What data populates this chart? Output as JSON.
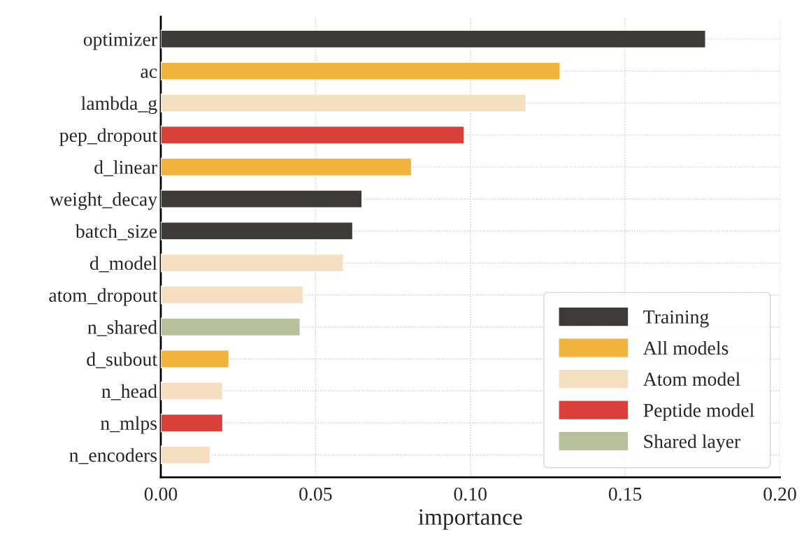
{
  "chart_data": {
    "type": "bar",
    "orientation": "horizontal",
    "stacked": true,
    "categories": [
      "optimizer",
      "ac",
      "lambda_g",
      "pep_dropout",
      "d_linear",
      "weight_decay",
      "batch_size",
      "d_model",
      "atom_dropout",
      "n_shared",
      "d_subout",
      "n_head",
      "n_mlps",
      "n_encoders"
    ],
    "series": [
      {
        "name": "Training",
        "color": "#3d3b38",
        "values": [
          0.176,
          null,
          null,
          null,
          null,
          0.065,
          0.062,
          null,
          null,
          null,
          null,
          null,
          null,
          null
        ]
      },
      {
        "name": "All models",
        "color": "#f0b43c",
        "values": [
          null,
          0.129,
          null,
          null,
          0.081,
          null,
          null,
          null,
          null,
          null,
          0.022,
          null,
          null,
          null
        ]
      },
      {
        "name": "Atom model",
        "color": "#f5dfc0",
        "values": [
          null,
          null,
          0.118,
          null,
          null,
          null,
          null,
          0.059,
          0.046,
          null,
          null,
          0.02,
          null,
          0.016
        ]
      },
      {
        "name": "Peptide model",
        "color": "#d9403a",
        "values": [
          null,
          null,
          null,
          0.098,
          null,
          null,
          null,
          null,
          null,
          null,
          null,
          null,
          0.02,
          null
        ]
      },
      {
        "name": "Shared layer",
        "color": "#b6c09a",
        "values": [
          null,
          null,
          null,
          null,
          null,
          null,
          null,
          null,
          null,
          0.045,
          null,
          null,
          null,
          null
        ]
      }
    ],
    "xlabel": "importance",
    "xlim": [
      0,
      0.2
    ],
    "xticks": [
      {
        "value": 0,
        "label": "0.00"
      },
      {
        "value": 0.05,
        "label": "0.05"
      },
      {
        "value": 0.1,
        "label": "0.10"
      },
      {
        "value": 0.15,
        "label": "0.15"
      },
      {
        "value": 0.2,
        "label": "0.20"
      }
    ],
    "grid": true,
    "legend": "bottom right"
  }
}
